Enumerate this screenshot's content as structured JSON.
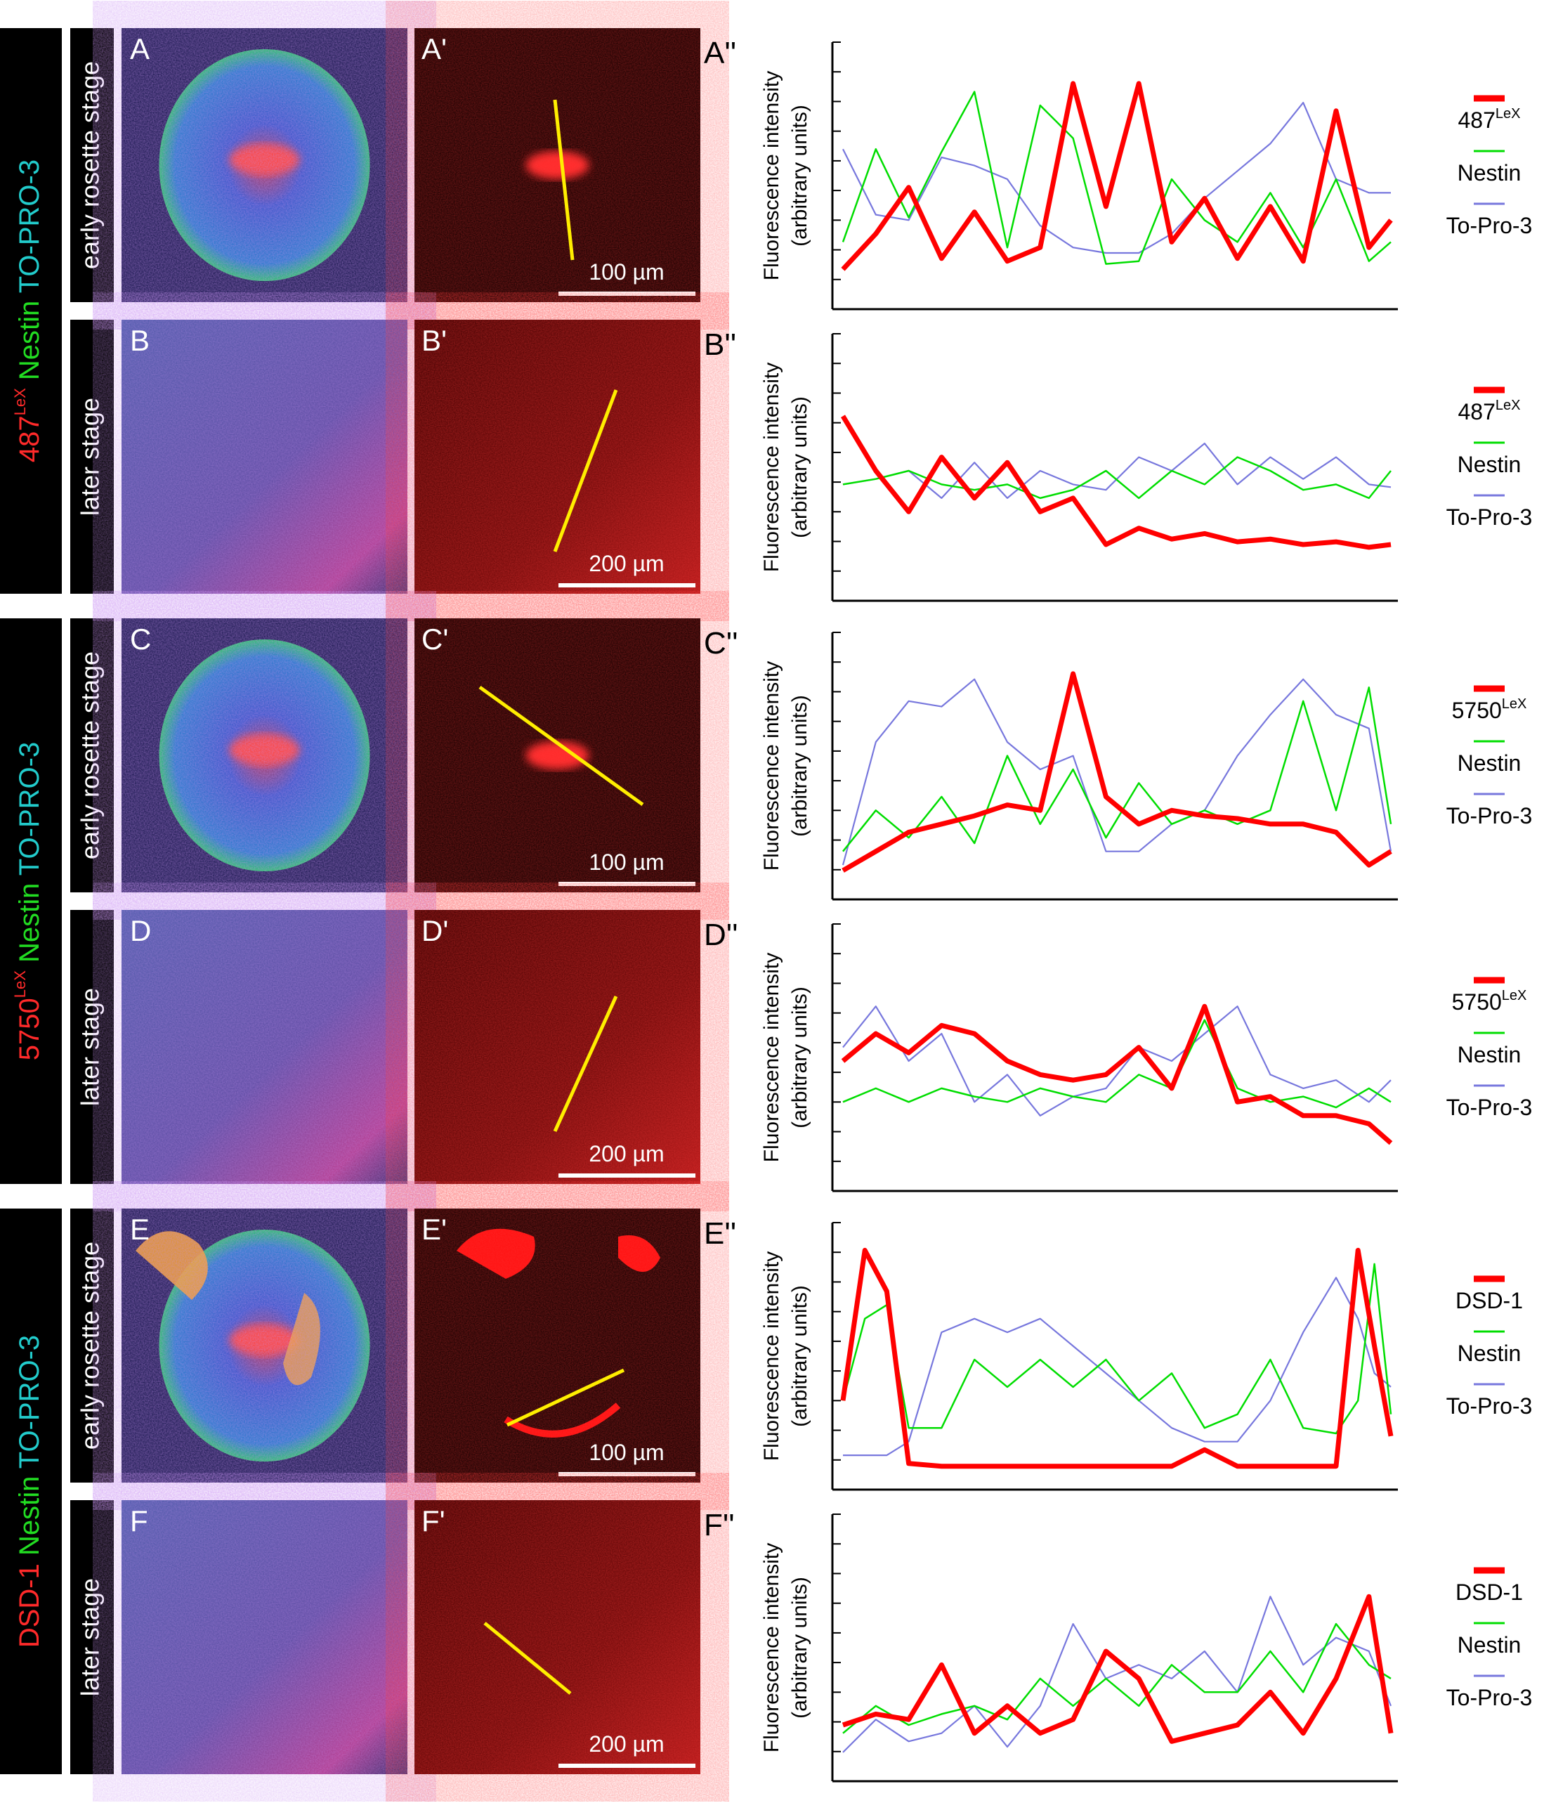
{
  "figure": {
    "stain_groups": [
      {
        "stain_a": "TO-PRO-3",
        "stain_b": "Nestin",
        "stain_marker": "487",
        "stain_marker_sup": "LeX"
      },
      {
        "stain_a": "TO-PRO-3",
        "stain_b": "Nestin",
        "stain_marker": "5750",
        "stain_marker_sup": "LeX"
      },
      {
        "stain_a": "TO-PRO-3",
        "stain_b": "Nestin",
        "stain_marker": "DSD-1",
        "stain_marker_sup": ""
      }
    ],
    "stage_labels": [
      "early rosette stage",
      "later stage",
      "early rosette stage",
      "later stage",
      "early rosette stage",
      "later stage"
    ],
    "panel_letters": [
      "A",
      "B",
      "C",
      "D",
      "E",
      "F"
    ],
    "prime_letters": [
      "A'",
      "B'",
      "C'",
      "D'",
      "E'",
      "F'"
    ],
    "plot_letters": [
      "A''",
      "B''",
      "C''",
      "D''",
      "E''",
      "F''"
    ],
    "scale_bars": [
      "100 µm",
      "200 µm",
      "100 µm",
      "200 µm",
      "100 µm",
      "200 µm"
    ],
    "y_axis_label_line1": "Fluorescence intensity",
    "y_axis_label_line2": "(arbitrary units)",
    "legends": [
      [
        {
          "name": "487",
          "sup": "LeX",
          "color": "#ff0000"
        },
        {
          "name": "Nestin",
          "sup": "",
          "color": "#00dd00"
        },
        {
          "name": "To-Pro-3",
          "sup": "",
          "color": "#7777dd"
        }
      ],
      [
        {
          "name": "487",
          "sup": "LeX",
          "color": "#ff0000"
        },
        {
          "name": "Nestin",
          "sup": "",
          "color": "#00dd00"
        },
        {
          "name": "To-Pro-3",
          "sup": "",
          "color": "#7777dd"
        }
      ],
      [
        {
          "name": "5750",
          "sup": "LeX",
          "color": "#ff0000"
        },
        {
          "name": "Nestin",
          "sup": "",
          "color": "#00dd00"
        },
        {
          "name": "To-Pro-3",
          "sup": "",
          "color": "#7777dd"
        }
      ],
      [
        {
          "name": "5750",
          "sup": "LeX",
          "color": "#ff0000"
        },
        {
          "name": "Nestin",
          "sup": "",
          "color": "#00dd00"
        },
        {
          "name": "To-Pro-3",
          "sup": "",
          "color": "#7777dd"
        }
      ],
      [
        {
          "name": "DSD-1",
          "sup": "",
          "color": "#ff0000"
        },
        {
          "name": "Nestin",
          "sup": "",
          "color": "#00dd00"
        },
        {
          "name": "To-Pro-3",
          "sup": "",
          "color": "#7777dd"
        }
      ],
      [
        {
          "name": "DSD-1",
          "sup": "",
          "color": "#ff0000"
        },
        {
          "name": "Nestin",
          "sup": "",
          "color": "#00dd00"
        },
        {
          "name": "To-Pro-3",
          "sup": "",
          "color": "#7777dd"
        }
      ]
    ]
  },
  "chart_data": [
    {
      "type": "line",
      "id": "A''",
      "xlabel": "",
      "ylabel": "Fluorescence intensity (arbitrary units)",
      "ylim": [
        0,
        9
      ],
      "x": [
        0,
        0.06,
        0.12,
        0.18,
        0.24,
        0.3,
        0.36,
        0.42,
        0.48,
        0.54,
        0.6,
        0.66,
        0.72,
        0.78,
        0.84,
        0.9,
        0.96,
        1.0
      ],
      "series": [
        {
          "name": "487LeX",
          "values": [
            1.2,
            2.5,
            4.2,
            1.6,
            3.3,
            1.5,
            2.0,
            8.0,
            3.5,
            8.0,
            2.2,
            3.8,
            1.6,
            3.5,
            1.5,
            7.0,
            2.0,
            3.0
          ]
        },
        {
          "name": "Nestin",
          "values": [
            2.2,
            5.6,
            3.1,
            5.5,
            7.7,
            2.0,
            7.2,
            6.0,
            1.4,
            1.5,
            4.5,
            3.0,
            2.2,
            4.0,
            2.0,
            4.5,
            1.5,
            2.2
          ]
        },
        {
          "name": "To-Pro-3",
          "values": [
            5.6,
            3.2,
            3.0,
            5.3,
            5.0,
            4.5,
            2.8,
            2.0,
            1.8,
            1.8,
            2.5,
            3.8,
            4.8,
            5.8,
            7.3,
            4.5,
            4.0,
            4.0
          ]
        }
      ]
    },
    {
      "type": "line",
      "id": "B''",
      "xlabel": "",
      "ylabel": "Fluorescence intensity (arbitrary units)",
      "ylim": [
        0,
        9
      ],
      "x": [
        0,
        0.06,
        0.12,
        0.18,
        0.24,
        0.3,
        0.36,
        0.42,
        0.48,
        0.54,
        0.6,
        0.66,
        0.72,
        0.78,
        0.84,
        0.9,
        0.96,
        1.0
      ],
      "series": [
        {
          "name": "487LeX",
          "values": [
            6.5,
            4.5,
            3.0,
            5.0,
            3.5,
            4.8,
            3.0,
            3.5,
            1.8,
            2.4,
            2.0,
            2.2,
            1.9,
            2.0,
            1.8,
            1.9,
            1.7,
            1.8
          ]
        },
        {
          "name": "Nestin",
          "values": [
            4.0,
            4.2,
            4.5,
            4.0,
            3.8,
            4.0,
            3.5,
            3.8,
            4.5,
            3.5,
            4.5,
            4.0,
            5.0,
            4.5,
            3.8,
            4.0,
            3.5,
            4.5
          ]
        },
        {
          "name": "To-Pro-3",
          "values": [
            4.0,
            4.2,
            4.5,
            3.5,
            4.8,
            3.5,
            4.5,
            4.0,
            3.8,
            5.0,
            4.5,
            5.5,
            4.0,
            5.0,
            4.2,
            5.0,
            4.0,
            3.9
          ]
        }
      ]
    },
    {
      "type": "line",
      "id": "C''",
      "xlabel": "",
      "ylabel": "Fluorescence intensity (arbitrary units)",
      "ylim": [
        0,
        9
      ],
      "x": [
        0,
        0.06,
        0.12,
        0.18,
        0.24,
        0.3,
        0.36,
        0.42,
        0.48,
        0.54,
        0.6,
        0.66,
        0.72,
        0.78,
        0.84,
        0.9,
        0.96,
        1.0
      ],
      "series": [
        {
          "name": "5750LeX",
          "values": [
            0.8,
            1.5,
            2.2,
            2.5,
            2.8,
            3.2,
            3.0,
            8.0,
            3.5,
            2.5,
            3.0,
            2.8,
            2.7,
            2.5,
            2.5,
            2.2,
            1.0,
            1.5
          ]
        },
        {
          "name": "Nestin",
          "values": [
            1.5,
            3.0,
            2.0,
            3.5,
            1.8,
            5.0,
            2.5,
            4.5,
            2.0,
            4.0,
            2.5,
            3.0,
            2.5,
            3.0,
            7.0,
            3.0,
            7.5,
            2.5
          ]
        },
        {
          "name": "To-Pro-3",
          "values": [
            1.0,
            5.5,
            7.0,
            6.8,
            7.8,
            5.5,
            4.5,
            5.0,
            1.5,
            1.5,
            2.5,
            3.0,
            5.0,
            6.5,
            7.8,
            6.5,
            6.0,
            1.5
          ]
        }
      ]
    },
    {
      "type": "line",
      "id": "D''",
      "xlabel": "",
      "ylabel": "Fluorescence intensity (arbitrary units)",
      "ylim": [
        0,
        9
      ],
      "x": [
        0,
        0.06,
        0.12,
        0.18,
        0.24,
        0.3,
        0.36,
        0.42,
        0.48,
        0.54,
        0.6,
        0.66,
        0.72,
        0.78,
        0.84,
        0.9,
        0.96,
        1.0
      ],
      "series": [
        {
          "name": "5750LeX",
          "values": [
            4.5,
            5.5,
            4.8,
            5.8,
            5.5,
            4.5,
            4.0,
            3.8,
            4.0,
            5.0,
            3.5,
            6.5,
            3.0,
            3.2,
            2.5,
            2.5,
            2.2,
            1.5
          ]
        },
        {
          "name": "Nestin",
          "values": [
            3.0,
            3.5,
            3.0,
            3.5,
            3.2,
            3.0,
            3.5,
            3.2,
            3.0,
            4.0,
            3.5,
            6.0,
            3.5,
            3.0,
            3.2,
            2.8,
            3.5,
            3.0
          ]
        },
        {
          "name": "To-Pro-3",
          "values": [
            5.0,
            6.5,
            4.5,
            5.5,
            3.0,
            4.0,
            2.5,
            3.2,
            3.5,
            5.0,
            4.5,
            5.5,
            6.5,
            4.0,
            3.5,
            3.8,
            3.0,
            3.8
          ]
        }
      ]
    },
    {
      "type": "line",
      "id": "E''",
      "xlabel": "",
      "ylabel": "Fluorescence intensity (arbitrary units)",
      "ylim": [
        0,
        9
      ],
      "x": [
        0,
        0.04,
        0.08,
        0.12,
        0.18,
        0.24,
        0.3,
        0.36,
        0.42,
        0.48,
        0.54,
        0.6,
        0.66,
        0.72,
        0.78,
        0.84,
        0.9,
        0.94,
        0.97,
        1.0
      ],
      "series": [
        {
          "name": "DSD-1",
          "values": [
            3.0,
            8.5,
            7.0,
            0.7,
            0.6,
            0.6,
            0.6,
            0.6,
            0.6,
            0.6,
            0.6,
            0.6,
            1.2,
            0.6,
            0.6,
            0.6,
            0.6,
            8.5,
            5.0,
            1.7
          ]
        },
        {
          "name": "Nestin",
          "values": [
            3.0,
            6.0,
            6.5,
            2.0,
            2.0,
            4.5,
            3.5,
            4.5,
            3.5,
            4.5,
            3.0,
            4.0,
            2.0,
            2.5,
            4.5,
            2.0,
            1.8,
            3.0,
            8.0,
            2.5
          ]
        },
        {
          "name": "To-Pro-3",
          "values": [
            1.0,
            1.0,
            1.0,
            1.5,
            5.5,
            6.0,
            5.5,
            6.0,
            5.0,
            4.0,
            3.0,
            2.0,
            1.5,
            1.5,
            3.0,
            5.5,
            7.5,
            6.0,
            4.0,
            3.5
          ]
        }
      ]
    },
    {
      "type": "line",
      "id": "F''",
      "xlabel": "",
      "ylabel": "Fluorescence intensity (arbitrary units)",
      "ylim": [
        0,
        9
      ],
      "x": [
        0,
        0.06,
        0.12,
        0.18,
        0.24,
        0.3,
        0.36,
        0.42,
        0.48,
        0.54,
        0.6,
        0.66,
        0.72,
        0.78,
        0.84,
        0.9,
        0.96,
        1.0
      ],
      "series": [
        {
          "name": "DSD-1",
          "values": [
            1.8,
            2.2,
            2.0,
            4.0,
            1.5,
            2.5,
            1.5,
            2.0,
            4.5,
            3.5,
            1.2,
            1.5,
            1.8,
            3.0,
            1.5,
            3.5,
            6.5,
            1.5
          ]
        },
        {
          "name": "Nestin",
          "values": [
            1.5,
            2.5,
            1.8,
            2.2,
            2.5,
            2.0,
            3.5,
            2.5,
            3.5,
            2.5,
            4.0,
            3.0,
            3.0,
            4.5,
            3.0,
            5.5,
            4.0,
            3.5
          ]
        },
        {
          "name": "To-Pro-3",
          "values": [
            0.8,
            2.0,
            1.2,
            1.5,
            2.5,
            1.0,
            2.5,
            5.5,
            3.5,
            4.0,
            3.5,
            4.5,
            3.0,
            6.5,
            4.0,
            5.0,
            4.5,
            2.5
          ]
        }
      ]
    }
  ]
}
